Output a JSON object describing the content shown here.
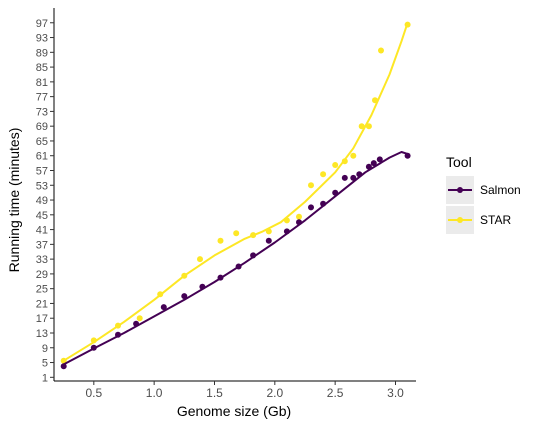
{
  "chart_data": {
    "type": "scatter",
    "title": "",
    "xlabel": "Genome size (Gb)",
    "ylabel": "Running time (minutes)",
    "xlim": [
      0.17,
      3.17
    ],
    "ylim": [
      0,
      101
    ],
    "x_ticks": [
      0.5,
      1.0,
      1.5,
      2.0,
      2.5,
      3.0
    ],
    "x_tick_labels": [
      "0.5",
      "1.0",
      "1.5",
      "2.0",
      "2.5",
      "3.0"
    ],
    "y_ticks": [
      1,
      5,
      9,
      13,
      17,
      21,
      25,
      29,
      33,
      37,
      41,
      45,
      49,
      53,
      57,
      61,
      65,
      69,
      73,
      77,
      81,
      85,
      89,
      93,
      97
    ],
    "y_tick_labels": [
      "1",
      "5",
      "9",
      "13",
      "17",
      "21",
      "25",
      "29",
      "33",
      "37",
      "41",
      "45",
      "49",
      "53",
      "57",
      "61",
      "65",
      "69",
      "73",
      "77",
      "81",
      "85",
      "89",
      "93",
      "97"
    ],
    "grid": false,
    "legend": {
      "title": "Tool",
      "placement": "right"
    },
    "series": [
      {
        "name": "Salmon",
        "color": "#440154",
        "points": [
          {
            "x": 0.25,
            "y": 4
          },
          {
            "x": 0.5,
            "y": 9
          },
          {
            "x": 0.7,
            "y": 12.5
          },
          {
            "x": 0.85,
            "y": 15.5
          },
          {
            "x": 1.08,
            "y": 20
          },
          {
            "x": 1.25,
            "y": 23
          },
          {
            "x": 1.4,
            "y": 25.5
          },
          {
            "x": 1.55,
            "y": 28
          },
          {
            "x": 1.7,
            "y": 31
          },
          {
            "x": 1.82,
            "y": 34
          },
          {
            "x": 1.95,
            "y": 38
          },
          {
            "x": 2.1,
            "y": 40.5
          },
          {
            "x": 2.2,
            "y": 43
          },
          {
            "x": 2.3,
            "y": 47
          },
          {
            "x": 2.4,
            "y": 48
          },
          {
            "x": 2.5,
            "y": 51
          },
          {
            "x": 2.58,
            "y": 55
          },
          {
            "x": 2.65,
            "y": 55
          },
          {
            "x": 2.7,
            "y": 56
          },
          {
            "x": 2.78,
            "y": 58
          },
          {
            "x": 2.82,
            "y": 59
          },
          {
            "x": 2.87,
            "y": 60
          },
          {
            "x": 3.1,
            "y": 61
          }
        ],
        "trend": [
          {
            "x": 0.25,
            "y": 4.5
          },
          {
            "x": 0.5,
            "y": 8.8
          },
          {
            "x": 0.75,
            "y": 13
          },
          {
            "x": 1.0,
            "y": 17.5
          },
          {
            "x": 1.25,
            "y": 22
          },
          {
            "x": 1.5,
            "y": 26.8
          },
          {
            "x": 1.75,
            "y": 32
          },
          {
            "x": 2.0,
            "y": 37.5
          },
          {
            "x": 2.25,
            "y": 43.5
          },
          {
            "x": 2.5,
            "y": 50
          },
          {
            "x": 2.75,
            "y": 56.5
          },
          {
            "x": 2.95,
            "y": 60.5
          },
          {
            "x": 3.05,
            "y": 62
          },
          {
            "x": 3.1,
            "y": 61.5
          }
        ]
      },
      {
        "name": "STAR",
        "color": "#FDE725",
        "points": [
          {
            "x": 0.25,
            "y": 5.5
          },
          {
            "x": 0.5,
            "y": 11
          },
          {
            "x": 0.7,
            "y": 15
          },
          {
            "x": 0.88,
            "y": 17
          },
          {
            "x": 1.05,
            "y": 23.5
          },
          {
            "x": 1.25,
            "y": 28.5
          },
          {
            "x": 1.38,
            "y": 33
          },
          {
            "x": 1.55,
            "y": 38
          },
          {
            "x": 1.68,
            "y": 40
          },
          {
            "x": 1.82,
            "y": 39.5
          },
          {
            "x": 1.95,
            "y": 40.5
          },
          {
            "x": 2.1,
            "y": 43.5
          },
          {
            "x": 2.2,
            "y": 44.5
          },
          {
            "x": 2.3,
            "y": 53
          },
          {
            "x": 2.4,
            "y": 56
          },
          {
            "x": 2.5,
            "y": 58.5
          },
          {
            "x": 2.58,
            "y": 59.5
          },
          {
            "x": 2.65,
            "y": 61
          },
          {
            "x": 2.72,
            "y": 69
          },
          {
            "x": 2.78,
            "y": 69
          },
          {
            "x": 2.83,
            "y": 76
          },
          {
            "x": 2.88,
            "y": 89.5
          },
          {
            "x": 3.1,
            "y": 96.5
          }
        ],
        "trend": [
          {
            "x": 0.25,
            "y": 5.5
          },
          {
            "x": 0.5,
            "y": 10.5
          },
          {
            "x": 0.75,
            "y": 16
          },
          {
            "x": 1.0,
            "y": 22
          },
          {
            "x": 1.25,
            "y": 28.5
          },
          {
            "x": 1.5,
            "y": 34
          },
          {
            "x": 1.75,
            "y": 38.5
          },
          {
            "x": 1.9,
            "y": 40.5
          },
          {
            "x": 2.05,
            "y": 43
          },
          {
            "x": 2.25,
            "y": 48.5
          },
          {
            "x": 2.5,
            "y": 56.5
          },
          {
            "x": 2.65,
            "y": 63
          },
          {
            "x": 2.8,
            "y": 72
          },
          {
            "x": 2.95,
            "y": 83
          },
          {
            "x": 3.05,
            "y": 92
          },
          {
            "x": 3.1,
            "y": 97
          }
        ]
      }
    ]
  }
}
